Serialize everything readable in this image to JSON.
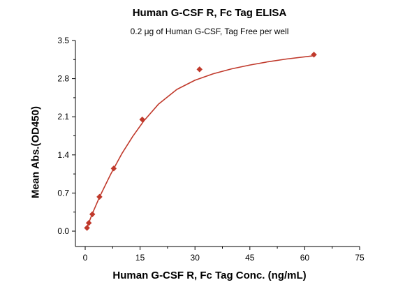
{
  "chart_data": {
    "type": "scatter",
    "title": "Human G-CSF R, Fc Tag ELISA",
    "subtitle": "0.2 μg of Human G-CSF, Tag Free per well",
    "xlabel": "Human G-CSF R, Fc Tag Conc. (ng/mL)",
    "ylabel": "Mean Abs.(OD450)",
    "xlim": [
      0,
      75
    ],
    "ylim": [
      0.0,
      3.5
    ],
    "xticks": [
      "0",
      "15",
      "30",
      "45",
      "60",
      "75"
    ],
    "yticks": [
      "0.0",
      "0.7",
      "1.4",
      "2.1",
      "2.8",
      "3.5"
    ],
    "grid": false,
    "colors": {
      "series": "#c0392b"
    },
    "series": [
      {
        "points": [
          {
            "x": 0.49,
            "y": 0.06
          },
          {
            "x": 0.98,
            "y": 0.15
          },
          {
            "x": 1.95,
            "y": 0.31
          },
          {
            "x": 3.9,
            "y": 0.63
          },
          {
            "x": 7.8,
            "y": 1.15
          },
          {
            "x": 15.6,
            "y": 2.05
          },
          {
            "x": 31.25,
            "y": 2.97
          },
          {
            "x": 62.5,
            "y": 3.24
          }
        ],
        "fit": [
          {
            "x": 0.3,
            "y": 0.04
          },
          {
            "x": 2,
            "y": 0.33
          },
          {
            "x": 4,
            "y": 0.64
          },
          {
            "x": 7,
            "y": 1.05
          },
          {
            "x": 10,
            "y": 1.42
          },
          {
            "x": 13,
            "y": 1.74
          },
          {
            "x": 16,
            "y": 2.02
          },
          {
            "x": 20,
            "y": 2.33
          },
          {
            "x": 25,
            "y": 2.6
          },
          {
            "x": 30,
            "y": 2.77
          },
          {
            "x": 35,
            "y": 2.89
          },
          {
            "x": 40,
            "y": 2.98
          },
          {
            "x": 45,
            "y": 3.05
          },
          {
            "x": 50,
            "y": 3.11
          },
          {
            "x": 55,
            "y": 3.16
          },
          {
            "x": 62.5,
            "y": 3.22
          }
        ]
      }
    ]
  }
}
